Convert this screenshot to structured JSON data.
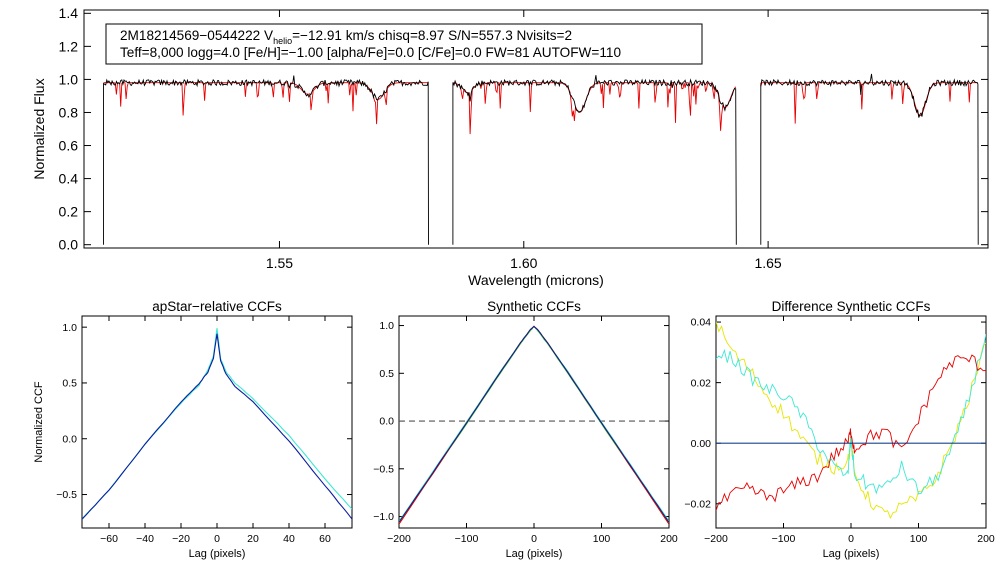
{
  "top_panel": {
    "label_line1_pre": "2M18214569−0544222  V",
    "label_line1_sub": "helio",
    "label_line1_post": "=−12.91 km/s  chisq=8.97  S/N=557.3  Nvisits=2",
    "label_line2": "Teff=8,000 logg=4.0 [Fe/H]=−1.00 [alpha/Fe]=0.0 [C/Fe]=0.0 FW=81 AUTOFW=110"
  },
  "colors": {
    "observed": "#000000",
    "model": "#e60000",
    "cyan": "#3ee8d4",
    "blue": "#0a1ea0",
    "yellow": "#e6e600",
    "green": "#2ecc2e",
    "red": "#e60000",
    "dashed": "#555555"
  },
  "chart_data": [
    {
      "id": "spectrum",
      "type": "line",
      "title": "",
      "xlabel": "Wavelength (microns)",
      "ylabel": "Normalized Flux",
      "xlim": [
        1.51,
        1.695
      ],
      "ylim": [
        -0.02,
        1.42
      ],
      "xticks": [
        1.55,
        1.6,
        1.65
      ],
      "xtick_labels": [
        "1.55",
        "1.60",
        "1.65"
      ],
      "yticks": [
        0.0,
        0.2,
        0.4,
        0.6,
        0.8,
        1.0,
        1.2,
        1.4
      ],
      "ytick_labels": [
        "0.0",
        "0.2",
        "0.4",
        "0.6",
        "0.8",
        "1.0",
        "1.2",
        "1.4"
      ],
      "chips": [
        [
          1.514,
          1.5805
        ],
        [
          1.5855,
          1.6435
        ],
        [
          1.6485,
          1.693
        ]
      ],
      "continuum": 0.98,
      "broad_lines": [
        {
          "center": 1.5558,
          "depth": 0.07,
          "width": 0.0018
        },
        {
          "center": 1.5702,
          "depth": 0.1,
          "width": 0.0018
        },
        {
          "center": 1.5885,
          "depth": 0.06,
          "width": 0.0015
        },
        {
          "center": 1.6114,
          "depth": 0.18,
          "width": 0.0018
        },
        {
          "center": 1.6412,
          "depth": 0.15,
          "width": 0.0016
        },
        {
          "center": 1.6811,
          "depth": 0.2,
          "width": 0.0016
        }
      ],
      "series": [
        {
          "name": "observed",
          "color": "#000000"
        },
        {
          "name": "synthetic",
          "color": "#e60000"
        }
      ]
    },
    {
      "id": "apstar",
      "type": "line",
      "title": "apStar−relative CCFs",
      "xlabel": "Lag (pixels)",
      "ylabel": "Normalized CCF",
      "xlim": [
        -75,
        75
      ],
      "ylim": [
        -0.8,
        1.1
      ],
      "xticks": [
        -60,
        -40,
        -20,
        0,
        20,
        40,
        60
      ],
      "xtick_labels": [
        "−60",
        "−40",
        "−20",
        "0",
        "20",
        "40",
        "60"
      ],
      "yticks": [
        -0.5,
        0.0,
        0.5,
        1.0
      ],
      "ytick_labels": [
        "−0.5",
        "0.0",
        "0.5",
        "1.0"
      ],
      "series": [
        {
          "name": "visit 1",
          "color": "#3ee8d4",
          "x": [
            -75,
            -60,
            -40,
            -20,
            -10,
            -5,
            -2,
            0,
            2,
            5,
            10,
            20,
            40,
            60,
            75
          ],
          "y": [
            -0.72,
            -0.46,
            -0.05,
            0.32,
            0.48,
            0.62,
            0.74,
            0.99,
            0.72,
            0.6,
            0.5,
            0.36,
            0.03,
            -0.36,
            -0.63
          ]
        },
        {
          "name": "visit 2",
          "color": "#0a1ea0",
          "x": [
            -75,
            -60,
            -40,
            -20,
            -10,
            -5,
            -2,
            0,
            2,
            5,
            10,
            20,
            40,
            60,
            75
          ],
          "y": [
            -0.72,
            -0.46,
            -0.05,
            0.33,
            0.49,
            0.6,
            0.72,
            0.94,
            0.7,
            0.58,
            0.47,
            0.33,
            -0.02,
            -0.42,
            -0.72
          ]
        }
      ]
    },
    {
      "id": "synthetic",
      "type": "line",
      "title": "Synthetic CCFs",
      "xlabel": "Lag (pixels)",
      "ylabel": "",
      "xlim": [
        -200,
        200
      ],
      "ylim": [
        -1.12,
        1.1
      ],
      "xticks": [
        -200,
        -100,
        0,
        100,
        200
      ],
      "xtick_labels": [
        "−200",
        "−100",
        "0",
        "100",
        "200"
      ],
      "yticks": [
        -1.0,
        -0.5,
        0.0,
        0.5,
        1.0
      ],
      "ytick_labels": [
        "−1.0",
        "−0.5",
        "0.0",
        "0.5",
        "1.0"
      ],
      "hline": 0.0,
      "series": [
        {
          "name": "cyan",
          "color": "#3ee8d4",
          "x": [
            -200,
            -150,
            -100,
            -50,
            -20,
            -5,
            0,
            5,
            20,
            50,
            100,
            150,
            200
          ],
          "y": [
            -1.05,
            -0.53,
            -0.01,
            0.52,
            0.82,
            0.96,
            0.99,
            0.96,
            0.82,
            0.52,
            -0.01,
            -0.53,
            -1.05
          ]
        },
        {
          "name": "yellow",
          "color": "#e6e600",
          "x": [
            -200,
            -150,
            -100,
            -50,
            -20,
            -5,
            0,
            5,
            20,
            50,
            100,
            150,
            200
          ],
          "y": [
            -1.06,
            -0.54,
            -0.02,
            0.51,
            0.82,
            0.96,
            0.99,
            0.96,
            0.82,
            0.51,
            -0.02,
            -0.54,
            -1.06
          ]
        },
        {
          "name": "green",
          "color": "#2ecc2e",
          "x": [
            -200,
            -150,
            -100,
            -50,
            -20,
            -5,
            0,
            5,
            20,
            50,
            100,
            150,
            200
          ],
          "y": [
            -1.07,
            -0.55,
            -0.03,
            0.5,
            0.81,
            0.95,
            0.99,
            0.95,
            0.81,
            0.5,
            -0.03,
            -0.55,
            -1.07
          ]
        },
        {
          "name": "red",
          "color": "#e60000",
          "x": [
            -200,
            -150,
            -100,
            -50,
            -20,
            -5,
            0,
            5,
            20,
            50,
            100,
            150,
            200
          ],
          "y": [
            -1.08,
            -0.55,
            -0.02,
            0.51,
            0.82,
            0.96,
            0.99,
            0.96,
            0.82,
            0.51,
            -0.02,
            -0.55,
            -1.08
          ]
        },
        {
          "name": "blue",
          "color": "#0a1ea0",
          "x": [
            -200,
            -150,
            -100,
            -50,
            -20,
            -5,
            0,
            5,
            20,
            50,
            100,
            150,
            200
          ],
          "y": [
            -1.06,
            -0.54,
            -0.02,
            0.51,
            0.82,
            0.96,
            0.99,
            0.96,
            0.82,
            0.51,
            -0.02,
            -0.54,
            -1.06
          ]
        }
      ]
    },
    {
      "id": "difference",
      "type": "line",
      "title": "Difference Synthetic CCFs",
      "xlabel": "Lag (pixels)",
      "ylabel": "",
      "xlim": [
        -200,
        200
      ],
      "ylim": [
        -0.028,
        0.042
      ],
      "xticks": [
        -200,
        -100,
        0,
        100,
        200
      ],
      "xtick_labels": [
        "−200",
        "−100",
        "0",
        "100",
        "200"
      ],
      "yticks": [
        -0.02,
        0.0,
        0.02,
        0.04
      ],
      "ytick_labels": [
        "−0.02",
        "0.00",
        "0.02",
        "0.04"
      ],
      "series": [
        {
          "name": "yellow",
          "color": "#e6e600",
          "x": [
            -200,
            -175,
            -150,
            -125,
            -100,
            -75,
            -50,
            -25,
            -5,
            0,
            5,
            25,
            50,
            75,
            100,
            125,
            150,
            175,
            200
          ],
          "y": [
            0.04,
            0.03,
            0.024,
            0.016,
            0.01,
            0.002,
            -0.005,
            -0.008,
            -0.006,
            0.001,
            -0.01,
            -0.018,
            -0.024,
            -0.021,
            -0.018,
            -0.012,
            0.0,
            0.015,
            0.033
          ]
        },
        {
          "name": "cyan",
          "color": "#3ee8d4",
          "x": [
            -200,
            -175,
            -150,
            -125,
            -100,
            -75,
            -50,
            -25,
            -5,
            0,
            5,
            25,
            50,
            75,
            100,
            125,
            150,
            175,
            200
          ],
          "y": [
            0.03,
            0.028,
            0.022,
            0.018,
            0.016,
            0.01,
            0.0,
            -0.008,
            -0.011,
            0.002,
            -0.01,
            -0.014,
            -0.015,
            -0.008,
            -0.016,
            -0.012,
            -0.002,
            0.015,
            0.036
          ]
        },
        {
          "name": "green",
          "color": "#2ecc2e",
          "x": [
            -200,
            -150,
            -100,
            -50,
            0,
            50,
            100,
            150,
            200
          ],
          "y": [
            0.0,
            0.0,
            0.0,
            0.0,
            0.0,
            0.0,
            0.0,
            0.0,
            0.0
          ]
        },
        {
          "name": "red",
          "color": "#e60000",
          "x": [
            -200,
            -175,
            -150,
            -125,
            -100,
            -75,
            -50,
            -25,
            -5,
            0,
            5,
            25,
            50,
            75,
            100,
            125,
            150,
            175,
            200
          ],
          "y": [
            -0.021,
            -0.017,
            -0.015,
            -0.018,
            -0.016,
            -0.013,
            -0.011,
            -0.004,
            0.0,
            0.004,
            -0.002,
            0.002,
            0.004,
            -0.003,
            0.008,
            0.02,
            0.027,
            0.028,
            0.024
          ]
        },
        {
          "name": "blue",
          "color": "#0a1ea0",
          "x": [
            -200,
            -150,
            -100,
            -50,
            0,
            50,
            100,
            150,
            200
          ],
          "y": [
            0.0,
            0.0,
            0.0,
            0.0,
            0.0,
            0.0,
            0.0,
            0.0,
            0.0
          ]
        }
      ]
    }
  ]
}
